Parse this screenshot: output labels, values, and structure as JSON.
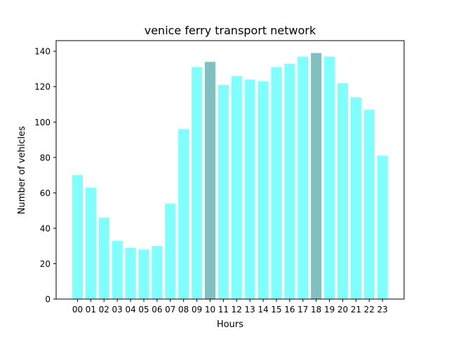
{
  "chart_data": {
    "type": "bar",
    "title": "venice ferry transport network",
    "xlabel": "Hours",
    "ylabel": "Number of vehicles",
    "categories": [
      "00",
      "01",
      "02",
      "03",
      "04",
      "05",
      "06",
      "07",
      "08",
      "09",
      "10",
      "11",
      "12",
      "13",
      "14",
      "15",
      "16",
      "17",
      "18",
      "19",
      "20",
      "21",
      "22",
      "23"
    ],
    "values": [
      70,
      63,
      46,
      33,
      29,
      28,
      30,
      54,
      96,
      131,
      134,
      121,
      126,
      124,
      123,
      131,
      133,
      137,
      139,
      137,
      122,
      114,
      107,
      81
    ],
    "highlighted": [
      "10",
      "18"
    ],
    "ylim": [
      0,
      146
    ],
    "yticks": [
      0,
      20,
      40,
      60,
      80,
      100,
      120,
      140
    ],
    "grid": false,
    "colors": {
      "bar": "#80ffff",
      "highlight": "#80c0c0",
      "axis": "#000000"
    }
  }
}
